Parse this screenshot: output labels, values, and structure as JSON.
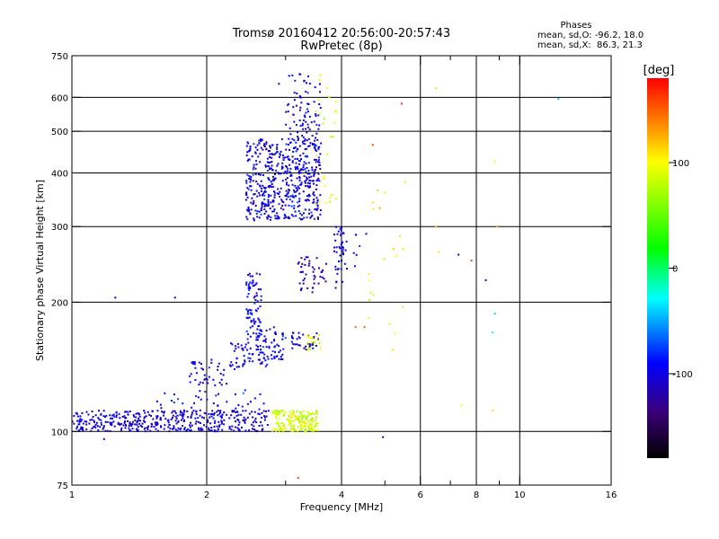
{
  "chart_data": {
    "type": "scatter",
    "title": "Tromsø 20160412 20:56:00-20:57:43",
    "subtitle": "RwPretec (8p)",
    "xlabel": "Frequency [MHz]",
    "ylabel": "Stationary phase Virtual Height [km]",
    "x_scale": "log",
    "y_scale": "log",
    "xlim": [
      1,
      16
    ],
    "ylim": [
      75,
      750
    ],
    "x_ticks": [
      1,
      2,
      4,
      6,
      8,
      10,
      16
    ],
    "x_tick_labels": [
      "1",
      "2",
      "4",
      "6",
      "8",
      "10",
      "16"
    ],
    "x_minor_ticks": [
      3,
      5,
      7,
      9
    ],
    "y_ticks": [
      75,
      100,
      200,
      300,
      400,
      500,
      600,
      750
    ],
    "y_tick_labels": [
      "75",
      "100",
      "200",
      "300",
      "400",
      "500",
      "600",
      "750"
    ],
    "grid": true,
    "annotation": {
      "heading": "Phases",
      "line1": "mean, sd,O: -96.2, 18.0",
      "line2": "mean, sd,X:  86.3, 21.3"
    },
    "colorbar": {
      "label": "[deg]",
      "range": [
        -180,
        180
      ],
      "ticks": [
        100,
        0,
        -100
      ],
      "tick_labels": [
        "100",
        "0",
        "-100"
      ]
    },
    "clusters": [
      {
        "f": [
          1.0,
          2.75
        ],
        "h": [
          100,
          112
        ],
        "n": 420,
        "phase": -105,
        "spread": 14
      },
      {
        "f": [
          1.55,
          2.8
        ],
        "h": [
          112,
          125
        ],
        "n": 35,
        "phase": -90,
        "spread": 15
      },
      {
        "f": [
          2.8,
          3.55
        ],
        "h": [
          100,
          112
        ],
        "n": 190,
        "phase": 85,
        "spread": 18
      },
      {
        "f": [
          1.8,
          2.35
        ],
        "h": [
          128,
          148
        ],
        "n": 45,
        "phase": -100,
        "spread": 12
      },
      {
        "f": [
          2.25,
          2.75
        ],
        "h": [
          140,
          165
        ],
        "n": 60,
        "phase": -100,
        "spread": 12
      },
      {
        "f": [
          2.45,
          2.65
        ],
        "h": [
          165,
          235
        ],
        "n": 80,
        "phase": -95,
        "spread": 14
      },
      {
        "f": [
          2.6,
          3.0
        ],
        "h": [
          145,
          175
        ],
        "n": 50,
        "phase": -95,
        "spread": 12
      },
      {
        "f": [
          3.1,
          3.55
        ],
        "h": [
          155,
          170
        ],
        "n": 35,
        "phase": -105,
        "spread": 10
      },
      {
        "f": [
          3.35,
          3.6
        ],
        "h": [
          155,
          168
        ],
        "n": 18,
        "phase": 90,
        "spread": 10
      },
      {
        "f": [
          2.45,
          3.6
        ],
        "h": [
          310,
          480
        ],
        "n": 520,
        "phase": -100,
        "spread": 16
      },
      {
        "f": [
          3.0,
          3.6
        ],
        "h": [
          450,
          680
        ],
        "n": 85,
        "phase": -100,
        "spread": 14
      },
      {
        "f": [
          3.5,
          3.9
        ],
        "h": [
          320,
          680
        ],
        "n": 28,
        "phase": 90,
        "spread": 12
      },
      {
        "f": [
          3.2,
          3.7
        ],
        "h": [
          210,
          255
        ],
        "n": 45,
        "phase": -115,
        "spread": 12
      },
      {
        "f": [
          3.85,
          4.05
        ],
        "h": [
          215,
          300
        ],
        "n": 40,
        "phase": -100,
        "spread": 10
      },
      {
        "f": [
          4.0,
          4.6
        ],
        "h": [
          230,
          290
        ],
        "n": 14,
        "phase": -90,
        "spread": 12
      },
      {
        "f": [
          4.6,
          5.6
        ],
        "h": [
          160,
          400
        ],
        "n": 20,
        "phase": 100,
        "spread": 20
      }
    ],
    "scatter_points": [
      {
        "f": 1.25,
        "h": 205,
        "phase": -100
      },
      {
        "f": 1.7,
        "h": 205,
        "phase": -110
      },
      {
        "f": 2.9,
        "h": 645,
        "phase": -105
      },
      {
        "f": 5.45,
        "h": 580,
        "phase": 160
      },
      {
        "f": 6.5,
        "h": 630,
        "phase": 110
      },
      {
        "f": 12.2,
        "h": 595,
        "phase": -40
      },
      {
        "f": 8.8,
        "h": 425,
        "phase": 100
      },
      {
        "f": 6.5,
        "h": 300,
        "phase": 120
      },
      {
        "f": 6.6,
        "h": 262,
        "phase": 110
      },
      {
        "f": 7.3,
        "h": 258,
        "phase": -100
      },
      {
        "f": 7.8,
        "h": 250,
        "phase": 160
      },
      {
        "f": 8.4,
        "h": 225,
        "phase": -100
      },
      {
        "f": 8.8,
        "h": 188,
        "phase": -40
      },
      {
        "f": 8.7,
        "h": 170,
        "phase": -20
      },
      {
        "f": 7.4,
        "h": 115,
        "phase": 100
      },
      {
        "f": 8.7,
        "h": 112,
        "phase": 110
      },
      {
        "f": 4.95,
        "h": 97,
        "phase": -100
      },
      {
        "f": 3.2,
        "h": 78,
        "phase": 160
      },
      {
        "f": 1.18,
        "h": 96,
        "phase": -100
      },
      {
        "f": 4.3,
        "h": 175,
        "phase": 150
      },
      {
        "f": 4.5,
        "h": 175,
        "phase": 150
      },
      {
        "f": 4.7,
        "h": 465,
        "phase": 150
      },
      {
        "f": 5.2,
        "h": 155,
        "phase": 110
      },
      {
        "f": 8.9,
        "h": 300,
        "phase": 130
      }
    ]
  }
}
